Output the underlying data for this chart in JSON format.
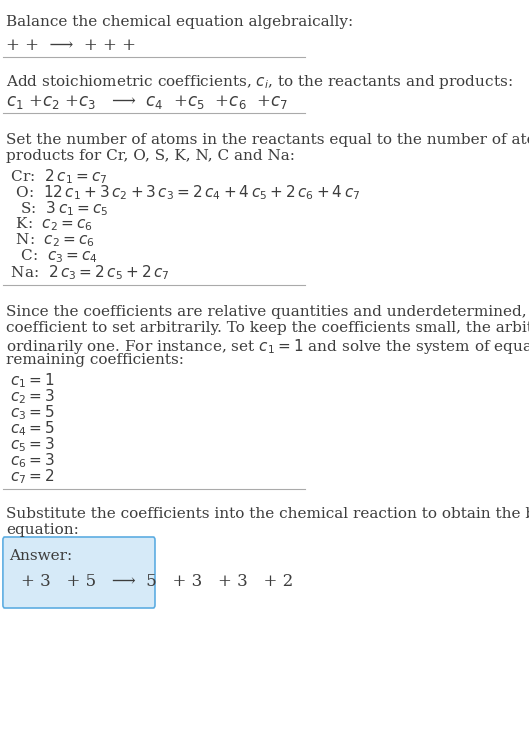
{
  "bg_color": "#ffffff",
  "text_color": "#3d3d3d",
  "title": "Balance the chemical equation algebraically:",
  "line1": "+ +  ⟶  + + +",
  "section2_title": "Add stoichiometric coefficients, $c_i$, to the reactants and products:",
  "line2": "$c_1$ +$c_2$ +$c_3$   ⟶  $c_4$  +$c_5$  +$c_6$  +$c_7$",
  "section3_title": "Set the number of atoms in the reactants equal to the number of atoms in the\nproducts for Cr, O, S, K, N, C and Na:",
  "equations": [
    " Cr:  $2\\,c_1 = c_7$",
    "  O:  $12\\,c_1 + 3\\,c_2 + 3\\,c_3 = 2\\,c_4 + 4\\,c_5 + 2\\,c_6 + 4\\,c_7$",
    "   S:  $3\\,c_1 = c_5$",
    "  K:  $c_2 = c_6$",
    "  N:  $c_2 = c_6$",
    "   C:  $c_3 = c_4$",
    " Na:  $2\\,c_3 = 2\\,c_5 + 2\\,c_7$"
  ],
  "section4_title": "Since the coefficients are relative quantities and underdetermined, choose a\ncoefficient to set arbitrarily. To keep the coefficients small, the arbitrary value is\nordinarily one. For instance, set $c_1 = 1$ and solve the system of equations for the\nremaining coefficients:",
  "coeffs": [
    "$c_1 = 1$",
    "$c_2 = 3$",
    "$c_3 = 5$",
    "$c_4 = 5$",
    "$c_5 = 3$",
    "$c_6 = 3$",
    "$c_7 = 2$"
  ],
  "section5_title": "Substitute the coefficients into the chemical reaction to obtain the balanced\nequation:",
  "answer_label": "Answer:",
  "answer_line": "+ 3   + 5   ⟶  5   + 3   + 3   + 2",
  "answer_box_color": "#d6eaf8",
  "answer_box_border": "#5dade2",
  "divider_color": "#aaaaaa"
}
